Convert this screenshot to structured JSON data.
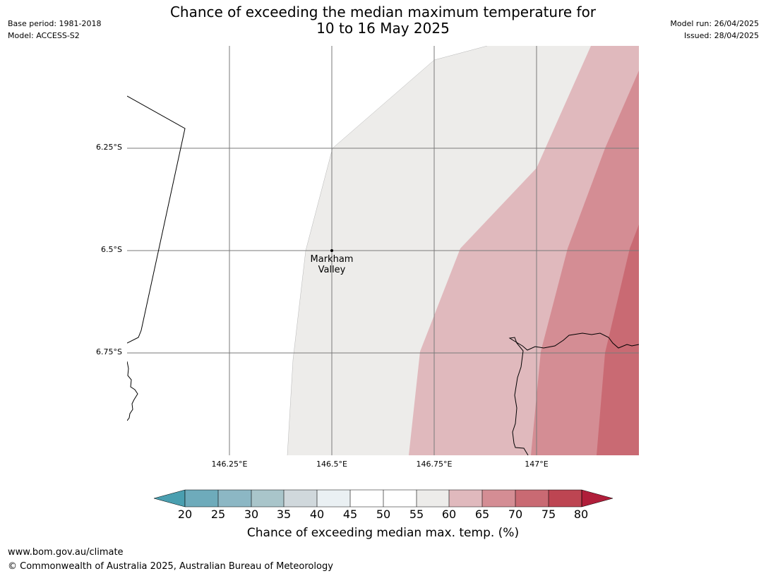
{
  "header": {
    "base_period": "Base period: 1981-2018",
    "model": "Model: ACCESS-S2",
    "model_run": "Model run: 26/04/2025",
    "issued": "Issued: 28/04/2025",
    "title_line1": "Chance of exceeding the median maximum temperature for",
    "title_line2": "10 to 16 May 2025"
  },
  "map": {
    "lat_labels": [
      "6.25°S",
      "6.5°S",
      "6.75°S"
    ],
    "lon_labels": [
      "146.25°E",
      "146.5°E",
      "146.75°E",
      "147°E"
    ],
    "place_name_line1": "Markham",
    "place_name_line2": "Valley",
    "bands": [
      {
        "range": "55-60",
        "color": "#edecea"
      },
      {
        "range": "60-65",
        "color": "#e0b9bd"
      },
      {
        "range": "65-70",
        "color": "#d48d94"
      },
      {
        "range": "70-75",
        "color": "#c96a73"
      }
    ]
  },
  "colorbar": {
    "ticks": [
      "20",
      "25",
      "30",
      "35",
      "40",
      "45",
      "50",
      "55",
      "60",
      "65",
      "70",
      "75",
      "80"
    ],
    "colors": [
      "#4a9fb0",
      "#6eabbb",
      "#8cb7c4",
      "#a9c5ca",
      "#d0d8dc",
      "#eaf0f3",
      "#ffffff",
      "#ffffff",
      "#edecea",
      "#e0b9bd",
      "#d48d94",
      "#c96a73",
      "#bd4552",
      "#b01e3a"
    ],
    "label": "Chance of exceeding median max. temp. (%)"
  },
  "footer": {
    "url": "www.bom.gov.au/climate",
    "copyright": "© Commonwealth of Australia 2025, Australian Bureau of Meteorology"
  }
}
